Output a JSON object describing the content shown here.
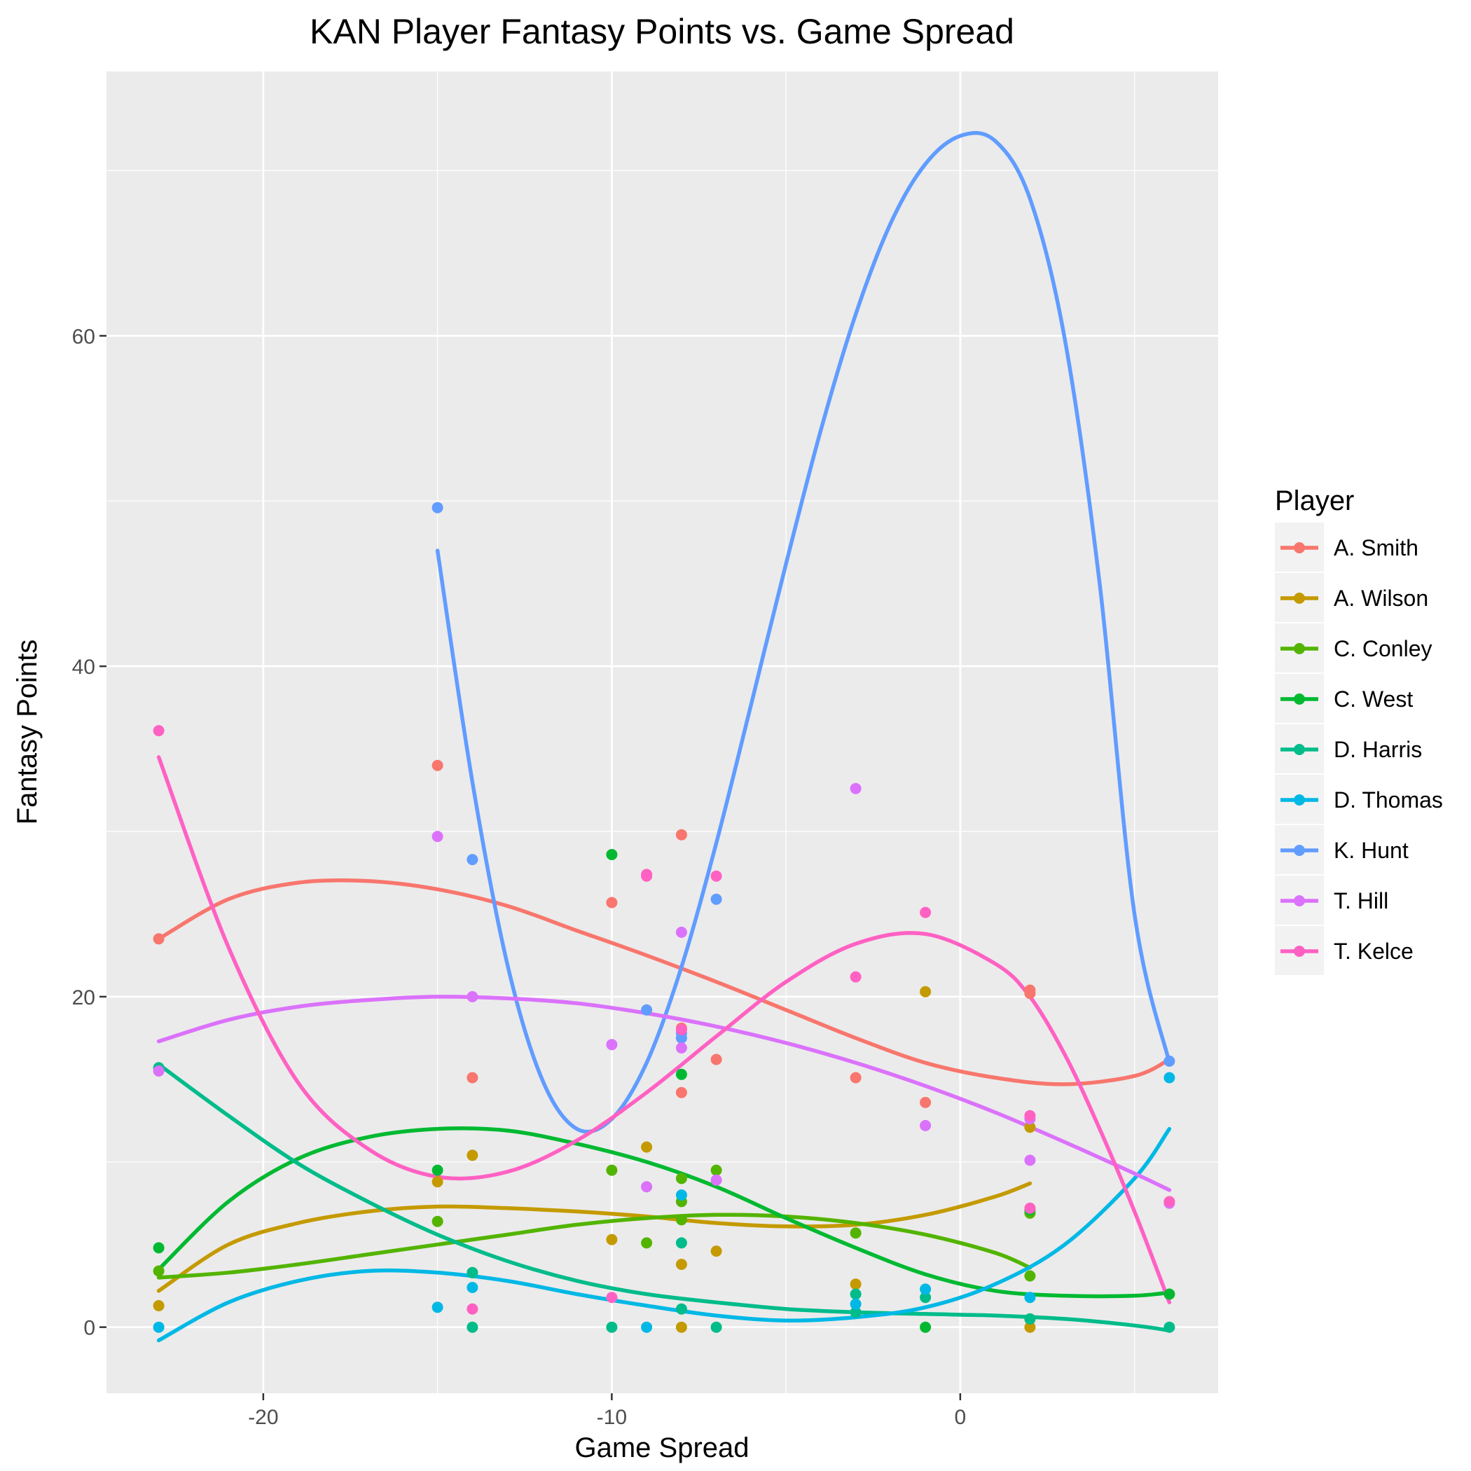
{
  "chart_data": {
    "type": "scatter",
    "title": "KAN Player Fantasy Points vs. Game Spread",
    "xlabel": "Game Spread",
    "ylabel": "Fantasy Points",
    "xlim": [
      -24.5,
      7.4
    ],
    "ylim": [
      -4,
      76
    ],
    "x_ticks": [
      -20,
      -10,
      0
    ],
    "y_ticks": [
      0,
      20,
      40,
      60
    ],
    "grid": true,
    "smoothed_trend_lines": true,
    "legend": {
      "title": "Player",
      "position": "right"
    },
    "series": [
      {
        "name": "A. Smith",
        "color": "#F8766D",
        "points": [
          [
            -23,
            23.5
          ],
          [
            -15,
            34
          ],
          [
            -14,
            15.1
          ],
          [
            -10,
            25.7
          ],
          [
            -8,
            29.8
          ],
          [
            -8,
            14.2
          ],
          [
            -8,
            18.1
          ],
          [
            -7,
            16.2
          ],
          [
            -3,
            15.1
          ],
          [
            -1,
            13.6
          ],
          [
            2,
            20.4
          ],
          [
            2,
            20.2
          ]
        ],
        "trend": [
          [
            -23,
            23.5
          ],
          [
            -21,
            25.9
          ],
          [
            -19,
            26.9
          ],
          [
            -17,
            27.0
          ],
          [
            -15,
            26.5
          ],
          [
            -13,
            25.5
          ],
          [
            -11,
            24.0
          ],
          [
            -9,
            22.5
          ],
          [
            -7,
            20.9
          ],
          [
            -5,
            19.2
          ],
          [
            -3,
            17.5
          ],
          [
            -1,
            16.0
          ],
          [
            1,
            15.1
          ],
          [
            3,
            14.7
          ],
          [
            5,
            15.2
          ],
          [
            6,
            16.2
          ]
        ]
      },
      {
        "name": "A. Wilson",
        "color": "#C49A00",
        "points": [
          [
            -23,
            1.3
          ],
          [
            -15,
            8.8
          ],
          [
            -14,
            10.4
          ],
          [
            -10,
            5.3
          ],
          [
            -9,
            10.9
          ],
          [
            -8,
            3.8
          ],
          [
            -8,
            0
          ],
          [
            -7,
            4.6
          ],
          [
            -3,
            2.6
          ],
          [
            -1,
            20.3
          ],
          [
            2,
            12.1
          ],
          [
            2,
            0
          ]
        ],
        "trend": [
          [
            -23,
            2.2
          ],
          [
            -21,
            5.0
          ],
          [
            -19,
            6.3
          ],
          [
            -17,
            7.0
          ],
          [
            -15,
            7.3
          ],
          [
            -13,
            7.2
          ],
          [
            -11,
            7.0
          ],
          [
            -9,
            6.7
          ],
          [
            -7,
            6.3
          ],
          [
            -5,
            6.1
          ],
          [
            -3,
            6.2
          ],
          [
            -1,
            6.8
          ],
          [
            1,
            7.9
          ],
          [
            2,
            8.7
          ]
        ]
      },
      {
        "name": "C. Conley",
        "color": "#53B400",
        "points": [
          [
            -23,
            3.4
          ],
          [
            -15,
            6.4
          ],
          [
            -14,
            3.3
          ],
          [
            -10,
            9.5
          ],
          [
            -9,
            5.1
          ],
          [
            -8,
            9.0
          ],
          [
            -8,
            7.6
          ],
          [
            -8,
            6.5
          ],
          [
            -7,
            9.5
          ],
          [
            -3,
            5.7
          ],
          [
            2,
            6.9
          ],
          [
            2,
            3.1
          ],
          [
            2,
            0.5
          ]
        ],
        "trend": [
          [
            -23,
            3.0
          ],
          [
            -21,
            3.3
          ],
          [
            -19,
            3.8
          ],
          [
            -17,
            4.4
          ],
          [
            -15,
            5.0
          ],
          [
            -13,
            5.6
          ],
          [
            -11,
            6.2
          ],
          [
            -9,
            6.6
          ],
          [
            -7,
            6.8
          ],
          [
            -5,
            6.7
          ],
          [
            -3,
            6.3
          ],
          [
            -1,
            5.6
          ],
          [
            1,
            4.5
          ],
          [
            2,
            3.6
          ]
        ]
      },
      {
        "name": "C. West",
        "color": "#00B931",
        "points": [
          [
            -23,
            4.8
          ],
          [
            -15,
            9.5
          ],
          [
            -10,
            28.6
          ],
          [
            -8,
            15.3
          ],
          [
            -1,
            0
          ],
          [
            2,
            7.1
          ],
          [
            6,
            2.0
          ]
        ],
        "trend": [
          [
            -23,
            3.5
          ],
          [
            -21,
            7.6
          ],
          [
            -19,
            10.2
          ],
          [
            -17,
            11.5
          ],
          [
            -15,
            12.0
          ],
          [
            -13,
            11.9
          ],
          [
            -11,
            11.1
          ],
          [
            -9,
            10.0
          ],
          [
            -7,
            8.5
          ],
          [
            -5,
            6.6
          ],
          [
            -3,
            4.8
          ],
          [
            -1,
            3.2
          ],
          [
            1,
            2.2
          ],
          [
            3,
            1.9
          ],
          [
            5,
            1.9
          ],
          [
            6,
            2.1
          ]
        ]
      },
      {
        "name": "D. Harris",
        "color": "#00BC8A",
        "points": [
          [
            -23,
            15.7
          ],
          [
            -14,
            0
          ],
          [
            -14,
            3.3
          ],
          [
            -10,
            0
          ],
          [
            -8,
            5.1
          ],
          [
            -8,
            1.1
          ],
          [
            -7,
            0
          ],
          [
            -3,
            2.0
          ],
          [
            -3,
            0.9
          ],
          [
            -1,
            1.8
          ],
          [
            2,
            0.5
          ],
          [
            6,
            0
          ]
        ],
        "trend": [
          [
            -23,
            15.9
          ],
          [
            -21,
            12.8
          ],
          [
            -19,
            9.9
          ],
          [
            -17,
            7.6
          ],
          [
            -15,
            5.6
          ],
          [
            -13,
            4.0
          ],
          [
            -11,
            2.8
          ],
          [
            -9,
            2.0
          ],
          [
            -7,
            1.5
          ],
          [
            -5,
            1.1
          ],
          [
            -3,
            0.9
          ],
          [
            -1,
            0.8
          ],
          [
            1,
            0.7
          ],
          [
            3,
            0.5
          ],
          [
            5,
            0.1
          ],
          [
            6,
            -0.2
          ]
        ]
      },
      {
        "name": "D. Thomas",
        "color": "#00B8E5",
        "points": [
          [
            -23,
            0
          ],
          [
            -15,
            1.2
          ],
          [
            -14,
            2.4
          ],
          [
            -9,
            0
          ],
          [
            -8,
            8.0
          ],
          [
            -3,
            1.4
          ],
          [
            -1,
            2.3
          ],
          [
            2,
            1.8
          ],
          [
            6,
            15.1
          ]
        ],
        "trend": [
          [
            -23,
            -0.8
          ],
          [
            -21,
            1.5
          ],
          [
            -19,
            2.8
          ],
          [
            -17,
            3.4
          ],
          [
            -15,
            3.3
          ],
          [
            -13,
            2.8
          ],
          [
            -11,
            2.0
          ],
          [
            -9,
            1.3
          ],
          [
            -7,
            0.7
          ],
          [
            -5,
            0.4
          ],
          [
            -3,
            0.6
          ],
          [
            -1,
            1.2
          ],
          [
            1,
            2.6
          ],
          [
            3,
            5.0
          ],
          [
            5,
            9.0
          ],
          [
            6,
            12.0
          ]
        ]
      },
      {
        "name": "K. Hunt",
        "color": "#619CFF",
        "points": [
          [
            -15,
            49.6
          ],
          [
            -14,
            28.3
          ],
          [
            -9,
            19.2
          ],
          [
            -8,
            17.8
          ],
          [
            -8,
            17.5
          ],
          [
            -7,
            25.9
          ],
          [
            6,
            16.1
          ]
        ],
        "trend": [
          [
            -15,
            47.0
          ],
          [
            -14,
            33.0
          ],
          [
            -13,
            22.0
          ],
          [
            -12,
            15.0
          ],
          [
            -11,
            12.0
          ],
          [
            -10,
            12.6
          ],
          [
            -9,
            16.0
          ],
          [
            -8,
            21.8
          ],
          [
            -7,
            29.3
          ],
          [
            -6,
            37.7
          ],
          [
            -5,
            46.2
          ],
          [
            -4,
            54.3
          ],
          [
            -3,
            61.3
          ],
          [
            -2,
            66.8
          ],
          [
            -1,
            70.4
          ],
          [
            0,
            72.1
          ],
          [
            1,
            71.8
          ],
          [
            2,
            68.3
          ],
          [
            3,
            59.8
          ],
          [
            4,
            45.0
          ],
          [
            5,
            25.0
          ],
          [
            6,
            16.0
          ]
        ]
      },
      {
        "name": "T. Hill",
        "color": "#DB72FB",
        "points": [
          [
            -23,
            15.5
          ],
          [
            -15,
            29.7
          ],
          [
            -14,
            20.0
          ],
          [
            -10,
            17.1
          ],
          [
            -9,
            8.5
          ],
          [
            -8,
            23.9
          ],
          [
            -8,
            16.9
          ],
          [
            -7,
            8.9
          ],
          [
            -3,
            32.6
          ],
          [
            -1,
            12.2
          ],
          [
            2,
            12.6
          ],
          [
            2,
            10.1
          ],
          [
            6,
            7.5
          ]
        ],
        "trend": [
          [
            -23,
            17.3
          ],
          [
            -21,
            18.6
          ],
          [
            -19,
            19.4
          ],
          [
            -17,
            19.8
          ],
          [
            -15,
            20.0
          ],
          [
            -13,
            19.9
          ],
          [
            -11,
            19.6
          ],
          [
            -9,
            19.0
          ],
          [
            -7,
            18.2
          ],
          [
            -5,
            17.2
          ],
          [
            -3,
            16.0
          ],
          [
            -1,
            14.6
          ],
          [
            1,
            13.0
          ],
          [
            3,
            11.2
          ],
          [
            5,
            9.3
          ],
          [
            6,
            8.3
          ]
        ]
      },
      {
        "name": "T. Kelce",
        "color": "#FF61C3",
        "points": [
          [
            -23,
            36.1
          ],
          [
            -14,
            1.1
          ],
          [
            -10,
            1.8
          ],
          [
            -9,
            27.4
          ],
          [
            -9,
            27.3
          ],
          [
            -8,
            18.0
          ],
          [
            -7,
            27.3
          ],
          [
            -3,
            21.2
          ],
          [
            -1,
            25.1
          ],
          [
            2,
            12.8
          ],
          [
            2,
            7.2
          ],
          [
            6,
            7.6
          ]
        ],
        "trend": [
          [
            -23,
            34.5
          ],
          [
            -21,
            23.0
          ],
          [
            -19,
            14.8
          ],
          [
            -17,
            10.8
          ],
          [
            -15,
            9.1
          ],
          [
            -13,
            9.4
          ],
          [
            -11,
            11.3
          ],
          [
            -9,
            14.2
          ],
          [
            -7,
            17.6
          ],
          [
            -5,
            20.9
          ],
          [
            -3,
            23.2
          ],
          [
            -1,
            23.8
          ],
          [
            1,
            22.0
          ],
          [
            2,
            20.0
          ],
          [
            3,
            16.5
          ],
          [
            4,
            12.0
          ],
          [
            5,
            7.0
          ],
          [
            6,
            1.5
          ]
        ]
      }
    ]
  }
}
